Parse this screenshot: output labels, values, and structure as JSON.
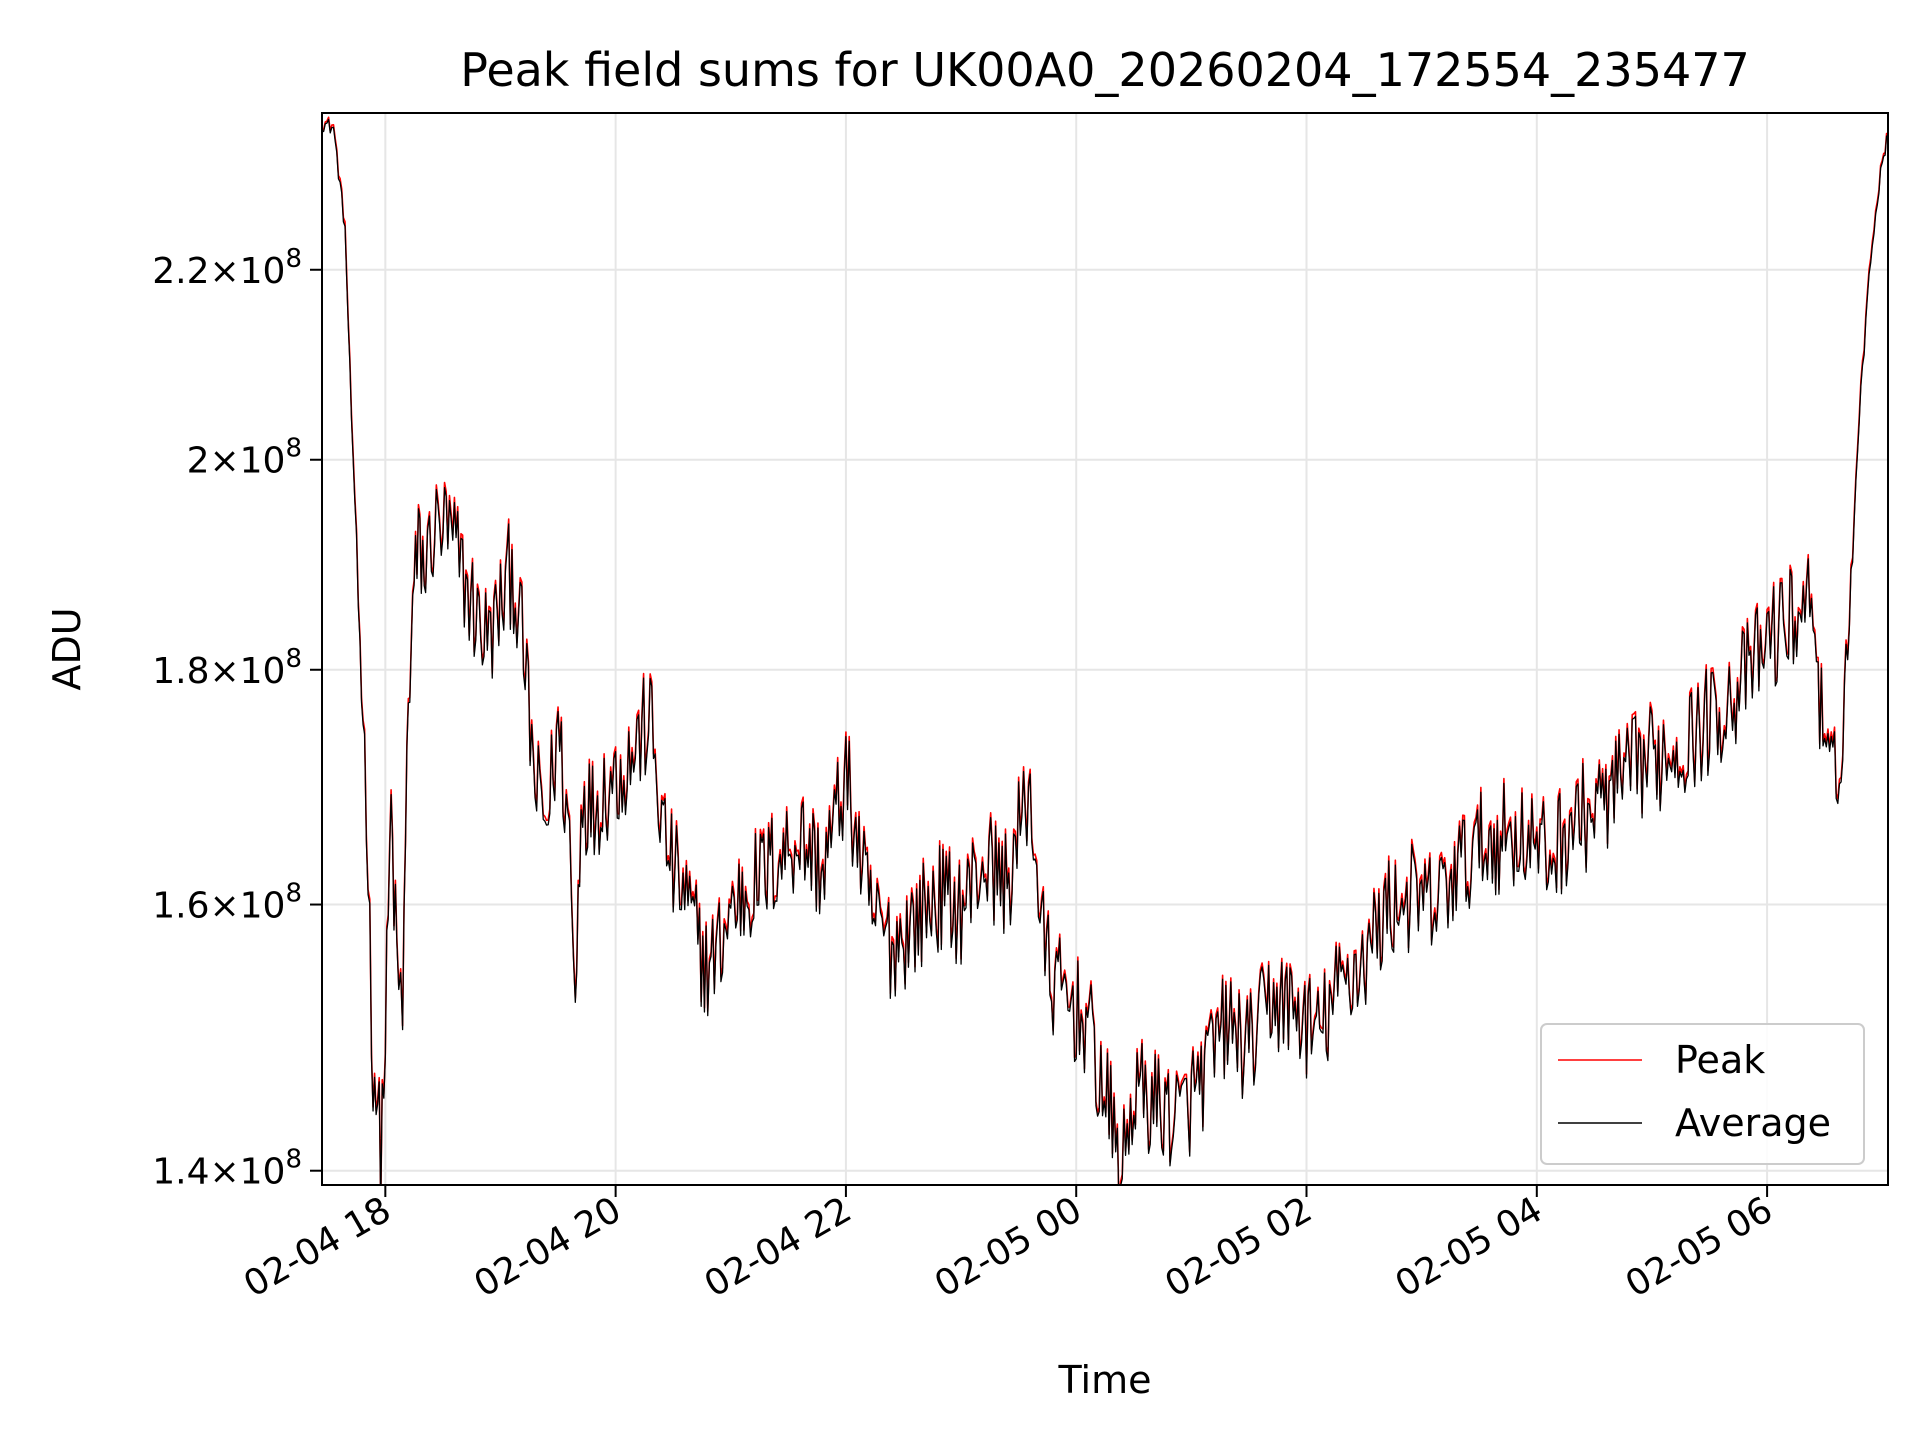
{
  "chart_data": {
    "type": "line",
    "title": "Peak field sums for UK00A0_20260204_172554_235477",
    "xlabel": "Time",
    "ylabel": "ADU",
    "yscale": "log",
    "xlim_hours": [
      17.45,
      31.05
    ],
    "ylim": [
      139000000,
      238000000
    ],
    "x_ticks": [
      {
        "hour": 18,
        "label": "02-04 18"
      },
      {
        "hour": 20,
        "label": "02-04 20"
      },
      {
        "hour": 22,
        "label": "02-04 22"
      },
      {
        "hour": 24,
        "label": "02-05 00"
      },
      {
        "hour": 26,
        "label": "02-05 02"
      },
      {
        "hour": 28,
        "label": "02-05 04"
      },
      {
        "hour": 30,
        "label": "02-05 06"
      }
    ],
    "y_ticks": [
      {
        "value": 140000000,
        "mantissa": "1.4",
        "exp": "8"
      },
      {
        "value": 160000000,
        "mantissa": "1.6",
        "exp": "8"
      },
      {
        "value": 180000000,
        "mantissa": "1.8",
        "exp": "8"
      },
      {
        "value": 200000000,
        "mantissa": "2",
        "exp": "8"
      },
      {
        "value": 220000000,
        "mantissa": "2.2",
        "exp": "8"
      }
    ],
    "grid": true,
    "legend_position": "bottom-right",
    "series": [
      {
        "name": "Peak",
        "color": "#ff0000",
        "x_hours": [
          17.45,
          17.55,
          17.65,
          17.72,
          17.78,
          17.82,
          17.85,
          17.88,
          17.92,
          17.96,
          18.0,
          18.05,
          18.1,
          18.15,
          18.2,
          18.25,
          18.3,
          18.35,
          18.4,
          18.5,
          18.6,
          18.7,
          18.8,
          18.9,
          19.0,
          19.1,
          19.2,
          19.3,
          19.4,
          19.5,
          19.6,
          19.65,
          19.7,
          19.8,
          19.9,
          20.0,
          20.1,
          20.2,
          20.3,
          20.4,
          20.5,
          20.6,
          20.7,
          20.8,
          20.9,
          21.0,
          21.2,
          21.4,
          21.6,
          21.8,
          22.0,
          22.2,
          22.4,
          22.6,
          22.8,
          23.0,
          23.2,
          23.4,
          23.6,
          23.7,
          23.8,
          23.9,
          24.0,
          24.1,
          24.2,
          24.3,
          24.4,
          24.5,
          24.7,
          24.9,
          25.1,
          25.3,
          25.5,
          25.7,
          25.9,
          26.1,
          26.3,
          26.5,
          26.7,
          26.9,
          27.1,
          27.3,
          27.5,
          27.7,
          27.9,
          28.1,
          28.3,
          28.5,
          28.7,
          28.9,
          29.1,
          29.3,
          29.5,
          29.7,
          29.9,
          30.0,
          30.1,
          30.2,
          30.3,
          30.4,
          30.5,
          30.6,
          30.7,
          30.8,
          30.9,
          31.0,
          31.05
        ],
        "values": [
          237000000,
          236500000,
          225000000,
          200000000,
          183000000,
          173000000,
          165000000,
          150000000,
          146000000,
          141500000,
          150000000,
          168000000,
          155000000,
          152000000,
          178000000,
          188000000,
          192000000,
          189000000,
          193000000,
          194000000,
          192000000,
          188000000,
          185000000,
          183000000,
          186000000,
          190000000,
          182000000,
          170000000,
          167000000,
          175000000,
          166000000,
          152000000,
          170000000,
          168000000,
          170000000,
          171000000,
          172000000,
          174000000,
          176000000,
          167000000,
          163000000,
          161000000,
          158000000,
          155000000,
          157000000,
          160000000,
          162000000,
          164000000,
          166000000,
          163000000,
          171000000,
          160000000,
          157000000,
          159000000,
          161000000,
          160000000,
          164000000,
          162000000,
          170000000,
          158000000,
          154000000,
          153000000,
          152000000,
          151000000,
          147000000,
          144000000,
          140000000,
          146000000,
          145000000,
          144000000,
          147000000,
          151000000,
          149000000,
          153000000,
          152000000,
          150000000,
          154000000,
          156000000,
          160000000,
          161000000,
          160000000,
          163000000,
          165000000,
          166000000,
          166000000,
          164000000,
          167000000,
          168000000,
          170000000,
          172000000,
          173000000,
          174000000,
          176000000,
          178000000,
          181000000,
          183000000,
          184000000,
          185000000,
          186000000,
          187000000,
          172000000,
          170000000,
          182000000,
          205000000,
          222000000,
          233000000,
          235500000
        ]
      },
      {
        "name": "Average",
        "color": "#000000",
        "x_hours": [
          17.45,
          17.55,
          17.65,
          17.72,
          17.78,
          17.82,
          17.85,
          17.88,
          17.92,
          17.96,
          18.0,
          18.05,
          18.1,
          18.15,
          18.2,
          18.25,
          18.3,
          18.35,
          18.4,
          18.5,
          18.6,
          18.7,
          18.8,
          18.9,
          19.0,
          19.1,
          19.2,
          19.3,
          19.4,
          19.5,
          19.6,
          19.65,
          19.7,
          19.8,
          19.9,
          20.0,
          20.1,
          20.2,
          20.3,
          20.4,
          20.5,
          20.6,
          20.7,
          20.8,
          20.9,
          21.0,
          21.2,
          21.4,
          21.6,
          21.8,
          22.0,
          22.2,
          22.4,
          22.6,
          22.8,
          23.0,
          23.2,
          23.4,
          23.6,
          23.7,
          23.8,
          23.9,
          24.0,
          24.1,
          24.2,
          24.3,
          24.4,
          24.5,
          24.7,
          24.9,
          25.1,
          25.3,
          25.5,
          25.7,
          25.9,
          26.1,
          26.3,
          26.5,
          26.7,
          26.9,
          27.1,
          27.3,
          27.5,
          27.7,
          27.9,
          28.1,
          28.3,
          28.5,
          28.7,
          28.9,
          29.1,
          29.3,
          29.5,
          29.7,
          29.9,
          30.0,
          30.1,
          30.2,
          30.3,
          30.4,
          30.5,
          30.6,
          30.7,
          30.8,
          30.9,
          31.0,
          31.05
        ],
        "values": [
          236800000,
          236200000,
          224500000,
          199500000,
          182600000,
          172600000,
          164600000,
          149700000,
          145700000,
          141200000,
          149700000,
          167600000,
          154700000,
          151700000,
          177600000,
          187600000,
          191600000,
          188600000,
          192600000,
          193500000,
          191500000,
          187600000,
          184600000,
          182600000,
          185600000,
          189500000,
          181600000,
          169600000,
          166600000,
          174600000,
          165600000,
          151700000,
          169600000,
          167600000,
          169600000,
          170600000,
          171600000,
          173600000,
          175600000,
          166600000,
          162600000,
          160600000,
          157600000,
          154700000,
          156600000,
          159600000,
          161600000,
          163600000,
          165600000,
          162600000,
          170600000,
          159600000,
          156600000,
          158600000,
          160600000,
          159600000,
          163600000,
          161600000,
          169600000,
          157600000,
          153700000,
          152700000,
          151700000,
          150700000,
          146700000,
          143700000,
          139700000,
          145700000,
          144700000,
          143700000,
          146700000,
          150700000,
          148700000,
          152700000,
          151700000,
          149700000,
          153700000,
          155700000,
          159600000,
          160600000,
          159600000,
          162600000,
          164600000,
          165600000,
          165600000,
          163600000,
          166600000,
          167600000,
          169600000,
          171600000,
          172600000,
          173600000,
          175600000,
          177600000,
          180600000,
          182600000,
          183600000,
          184600000,
          185600000,
          186600000,
          171600000,
          169600000,
          181600000,
          204500000,
          221500000,
          232700000,
          235200000
        ]
      }
    ]
  }
}
